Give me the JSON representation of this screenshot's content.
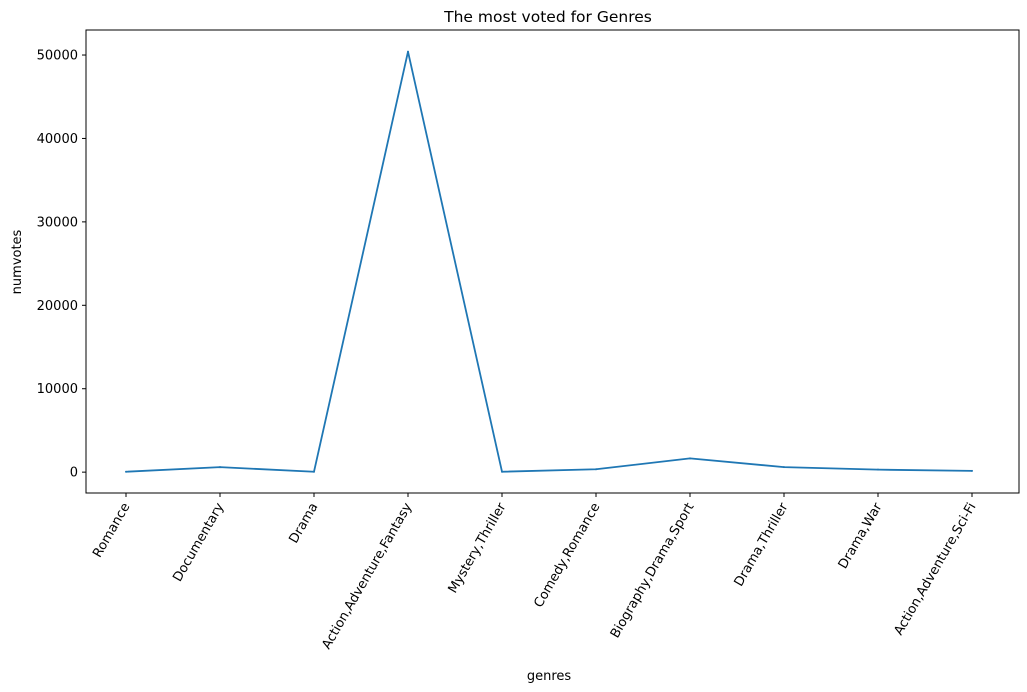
{
  "chart_data": {
    "type": "line",
    "title": "The most voted for Genres",
    "xlabel": "genres",
    "ylabel": "numvotes",
    "categories": [
      "Romance",
      "Documentary",
      "Drama",
      "Action,Adventure,Fantasy",
      "Mystery,Thriller",
      "Comedy,Romance",
      "Biography,Drama,Sport",
      "Drama,Thriller",
      "Drama,War",
      "Action,Adventure,Sci-Fi"
    ],
    "series": [
      {
        "values": [
          50,
          600,
          50,
          50400,
          50,
          350,
          1650,
          600,
          300,
          150
        ]
      }
    ],
    "yticks": [
      0,
      10000,
      20000,
      30000,
      40000,
      50000
    ],
    "ylim": [
      -2500,
      53000
    ],
    "grid": false,
    "line_color": "#1f77b4"
  }
}
